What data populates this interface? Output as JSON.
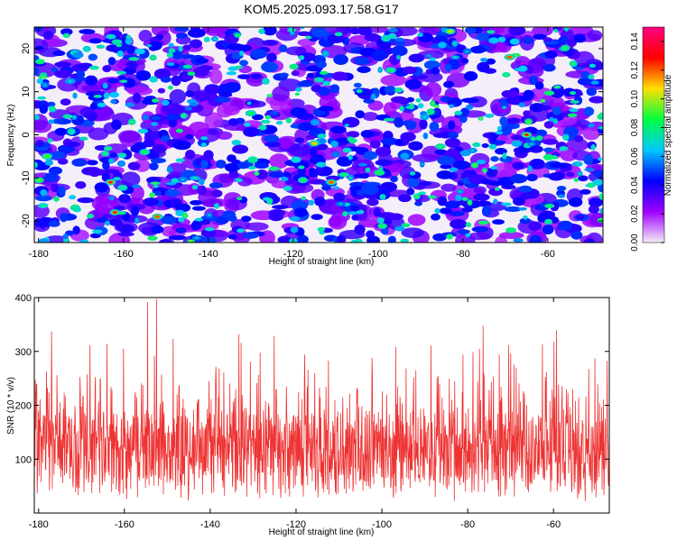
{
  "colors": {
    "snr_line": "#ee3333",
    "colormap": [
      "#f4eef8",
      "#a000ff",
      "#0000ff",
      "#00c8ff",
      "#00ff40",
      "#ffe000",
      "#ff0000",
      "#ff0080"
    ]
  },
  "chart_data": [
    {
      "type": "heatmap",
      "title": "KOM5.2025.093.17.58.G17",
      "xlabel": "Height of straight line (km)",
      "ylabel": "Frequency (Hz)",
      "xlim": [
        -181,
        -47
      ],
      "ylim": [
        -25,
        25
      ],
      "xticks": [
        -180,
        -160,
        -140,
        -120,
        -100,
        -80,
        -60
      ],
      "yticks": [
        -20,
        -10,
        0,
        10,
        20
      ],
      "colorbar": {
        "label": "Normalized spectral amplitude",
        "range": [
          0,
          0.15
        ],
        "ticks": [
          "0.00",
          "0.02",
          "0.04",
          "0.06",
          "0.08",
          "0.10",
          "0.12",
          "0.14"
        ]
      },
      "hotspots": [
        {
          "x": -163,
          "y": -11,
          "v": 0.14
        },
        {
          "x": -162,
          "y": -18,
          "v": 0.14
        },
        {
          "x": -152,
          "y": -19,
          "v": 0.12
        },
        {
          "x": -115,
          "y": -2,
          "v": 0.11
        },
        {
          "x": -111,
          "y": -11,
          "v": 0.12
        },
        {
          "x": -69,
          "y": 18,
          "v": 0.12
        },
        {
          "x": -65,
          "y": 0,
          "v": 0.13
        },
        {
          "x": -83,
          "y": 24,
          "v": 0.1
        },
        {
          "x": -178,
          "y": -5,
          "v": 0.09
        },
        {
          "x": -155,
          "y": -4,
          "v": 0.08
        },
        {
          "x": -130,
          "y": 5,
          "v": 0.08
        },
        {
          "x": -97,
          "y": 15,
          "v": 0.08
        }
      ]
    },
    {
      "type": "line",
      "xlabel": "Height of straight line (km)",
      "ylabel": "SNR (10 * v/v)",
      "xlim": [
        -181,
        -47
      ],
      "ylim": [
        0,
        400
      ],
      "xticks": [
        -180,
        -160,
        -140,
        -120,
        -100,
        -80,
        -60
      ],
      "yticks": [
        100,
        200,
        300,
        400
      ],
      "sample_count": 1600,
      "mean": 125,
      "max": 397
    }
  ]
}
